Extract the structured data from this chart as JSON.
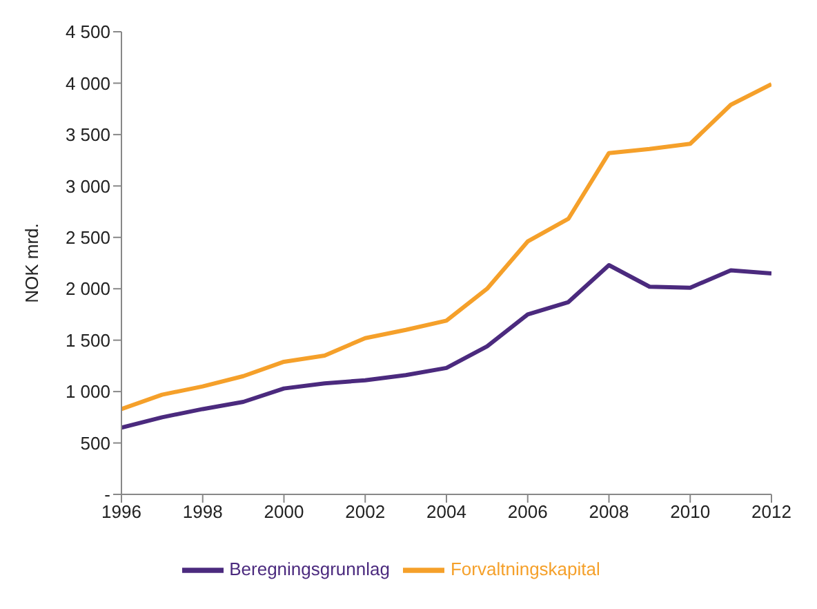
{
  "chart_data": {
    "type": "line",
    "ylabel": "NOK mrd.",
    "x": [
      1996,
      1997,
      1998,
      1999,
      2000,
      2001,
      2002,
      2003,
      2004,
      2005,
      2006,
      2007,
      2008,
      2009,
      2010,
      2011,
      2012
    ],
    "series": [
      {
        "name": "Beregningsgrunnlag",
        "color": "#4b2a7e",
        "values": [
          650,
          750,
          830,
          900,
          1030,
          1080,
          1110,
          1160,
          1230,
          1440,
          1750,
          1870,
          2230,
          2020,
          2010,
          2180,
          2150
        ]
      },
      {
        "name": "Forvaltningskapital",
        "color": "#f5a02a",
        "values": [
          830,
          970,
          1050,
          1150,
          1290,
          1350,
          1520,
          1600,
          1690,
          2000,
          2460,
          2680,
          3320,
          3360,
          3410,
          3790,
          3990
        ]
      }
    ],
    "xlim": [
      1996,
      2012
    ],
    "xticks": [
      1996,
      1998,
      2000,
      2002,
      2004,
      2006,
      2008,
      2010,
      2012
    ],
    "ylim": [
      0,
      4500
    ],
    "yticks": [
      {
        "value": 0,
        "label": "-"
      },
      500,
      {
        "value": 1000,
        "label": "1 000"
      },
      {
        "value": 1500,
        "label": "1 500"
      },
      {
        "value": 2000,
        "label": "2 000"
      },
      {
        "value": 2500,
        "label": "2 500"
      },
      {
        "value": 3000,
        "label": "3 000"
      },
      {
        "value": 3500,
        "label": "3 500"
      },
      {
        "value": 4000,
        "label": "4 000"
      },
      {
        "value": 4500,
        "label": "4 500"
      }
    ],
    "grid": false,
    "legend": "bottom",
    "marker": "none",
    "line_style": "solid"
  }
}
